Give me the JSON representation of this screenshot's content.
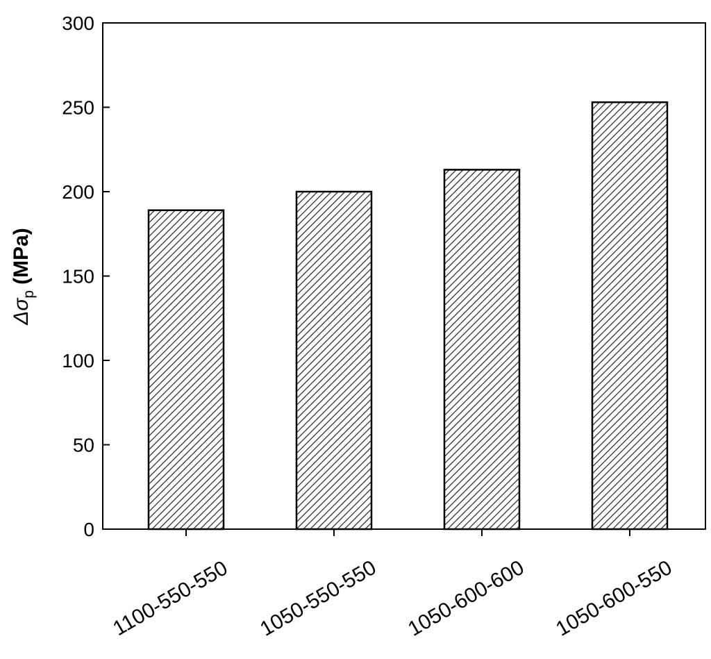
{
  "chart_data": {
    "type": "bar",
    "ylabel": {
      "symbol": "Δσ",
      "subscript": "p",
      "unit": "(MPa)"
    },
    "categories": [
      "1100-550-550",
      "1050-550-550",
      "1050-600-600",
      "1050-600-550"
    ],
    "values": [
      189,
      200,
      213,
      253
    ],
    "color": "#000000",
    "ylim": [
      0,
      300
    ],
    "yticks": [
      0,
      50,
      100,
      150,
      200,
      250,
      300
    ],
    "grid": false
  }
}
